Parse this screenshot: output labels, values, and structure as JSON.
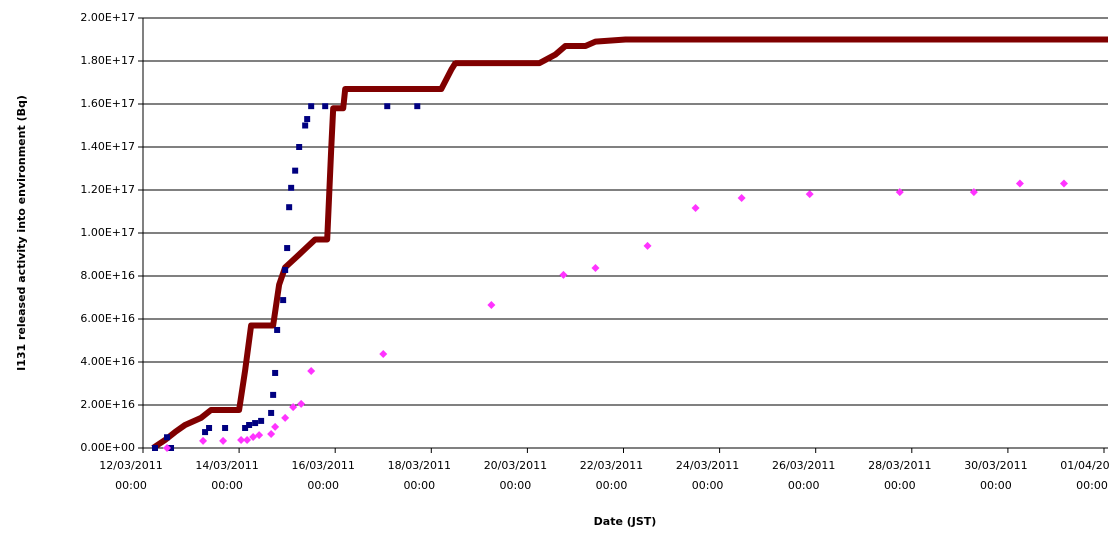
{
  "chart_data": {
    "type": "scatter",
    "x_label": "Date (JST)",
    "y_label": "I131 released activity into environment (Bq)",
    "xlim": [
      "2011-03-12 00:00",
      "2011-04-01 02:00"
    ],
    "xticks": [
      {
        "value": "2011-03-12 00:00",
        "label": "12/03/2011 00:00"
      },
      {
        "value": "2011-03-14 00:00",
        "label": "14/03/2011 00:00"
      },
      {
        "value": "2011-03-16 00:00",
        "label": "16/03/2011 00:00"
      },
      {
        "value": "2011-03-18 00:00",
        "label": "18/03/2011 00:00"
      },
      {
        "value": "2011-03-20 00:00",
        "label": "20/03/2011 00:00"
      },
      {
        "value": "2011-03-22 00:00",
        "label": "22/03/2011 00:00"
      },
      {
        "value": "2011-03-24 00:00",
        "label": "24/03/2011 00:00"
      },
      {
        "value": "2011-03-26 00:00",
        "label": "26/03/2011 00:00"
      },
      {
        "value": "2011-03-28 00:00",
        "label": "28/03/2011 00:00"
      },
      {
        "value": "2011-03-30 00:00",
        "label": "30/03/2011 00:00"
      },
      {
        "value": "2011-04-01 00:00",
        "label": "01/04/2011 00:00"
      }
    ],
    "ylim": [
      0,
      200000000000000000
    ],
    "yticks": [
      {
        "value": 0,
        "label": "0.00E+00"
      },
      {
        "value": 20000000000000000,
        "label": "2.00E+16"
      },
      {
        "value": 40000000000000000,
        "label": "4.00E+16"
      },
      {
        "value": 60000000000000000,
        "label": "6.00E+16"
      },
      {
        "value": 80000000000000000,
        "label": "8.00E+16"
      },
      {
        "value": 100000000000000000,
        "label": "1.00E+17"
      },
      {
        "value": 120000000000000000,
        "label": "1.20E+17"
      },
      {
        "value": 140000000000000000,
        "label": "1.40E+17"
      },
      {
        "value": 160000000000000000,
        "label": "1.60E+17"
      },
      {
        "value": 180000000000000000,
        "label": "1.80E+17"
      },
      {
        "value": 200000000000000000,
        "label": "2.00E+17"
      }
    ],
    "grid": true,
    "series": [
      {
        "marker": "line",
        "color": "#800000",
        "x": [
          "2011-03-12 05:00",
          "2011-03-12 11:00",
          "2011-03-12 16:00",
          "2011-03-12 21:00",
          "2011-03-13 05:00",
          "2011-03-13 10:00",
          "2011-03-14 00:00",
          "2011-03-14 03:00",
          "2011-03-14 06:00",
          "2011-03-14 17:00",
          "2011-03-14 20:00",
          "2011-03-14 23:00",
          "2011-03-15 06:00",
          "2011-03-15 14:00",
          "2011-03-15 20:00",
          "2011-03-15 22:00",
          "2011-03-15 23:00",
          "2011-03-16 04:00",
          "2011-03-16 05:00",
          "2011-03-18 05:00",
          "2011-03-18 10:00",
          "2011-03-18 12:00",
          "2011-03-20 06:00",
          "2011-03-20 14:00",
          "2011-03-20 19:00",
          "2011-03-21 05:00",
          "2011-03-21 10:00",
          "2011-03-22 01:00",
          "2011-04-01 02:00"
        ],
        "values": [
          0,
          3700000000000000,
          7400000000000000,
          10700000000000000,
          14000000000000000,
          17700000000000000,
          17700000000000000,
          36000000000000000,
          57000000000000000,
          57000000000000000,
          76000000000000000,
          84000000000000000,
          90000000000000000,
          97000000000000000,
          97000000000000000,
          139000000000000000,
          158000000000000000,
          158000000000000000,
          167000000000000000,
          167000000000000000,
          176000000000000000,
          179000000000000000,
          179000000000000000,
          183000000000000000,
          187000000000000000,
          187000000000000000,
          189000000000000000,
          190000000000000000,
          190000000000000000
        ]
      },
      {
        "marker": "square",
        "color": "#000080",
        "x": [
          "2011-03-12 06:00",
          "2011-03-12 12:00",
          "2011-03-12 14:00",
          "2011-03-13 07:00",
          "2011-03-13 09:00",
          "2011-03-13 17:00",
          "2011-03-14 03:00",
          "2011-03-14 05:00",
          "2011-03-14 08:00",
          "2011-03-14 11:00",
          "2011-03-14 16:00",
          "2011-03-14 17:00",
          "2011-03-14 18:00",
          "2011-03-14 19:00",
          "2011-03-14 22:00",
          "2011-03-14 23:00",
          "2011-03-15 00:00",
          "2011-03-15 01:00",
          "2011-03-15 02:00",
          "2011-03-15 04:00",
          "2011-03-15 06:00",
          "2011-03-15 09:00",
          "2011-03-15 10:00",
          "2011-03-15 12:00",
          "2011-03-15 19:00",
          "2011-03-17 02:00",
          "2011-03-17 17:00"
        ],
        "values": [
          0,
          5000000000000000,
          0,
          7400000000000000,
          9300000000000000,
          9300000000000000,
          9300000000000000,
          10700000000000000,
          11600000000000000,
          12600000000000000,
          16300000000000000,
          24700000000000000,
          34900000000000000,
          54900000000000000,
          68800000000000000,
          82800000000000000,
          93000000000000000,
          112000000000000000,
          121000000000000000,
          129000000000000000,
          140000000000000000,
          150000000000000000,
          153000000000000000,
          159000000000000000,
          159000000000000000,
          159000000000000000,
          159000000000000000
        ]
      },
      {
        "marker": "diamond",
        "color": "#ff33ff",
        "x": [
          "2011-03-12 12:00",
          "2011-03-13 06:00",
          "2011-03-13 16:00",
          "2011-03-14 01:00",
          "2011-03-14 04:00",
          "2011-03-14 07:00",
          "2011-03-14 10:00",
          "2011-03-14 16:00",
          "2011-03-14 18:00",
          "2011-03-14 23:00",
          "2011-03-15 03:00",
          "2011-03-15 07:00",
          "2011-03-15 12:00",
          "2011-03-17 00:00",
          "2011-03-19 06:00",
          "2011-03-20 18:00",
          "2011-03-21 10:00",
          "2011-03-22 12:00",
          "2011-03-23 12:00",
          "2011-03-24 11:00",
          "2011-03-25 21:00",
          "2011-03-27 18:00",
          "2011-03-29 07:00",
          "2011-03-30 06:00",
          "2011-03-31 04:00"
        ],
        "values": [
          0,
          3300000000000000,
          3300000000000000,
          3700000000000000,
          3700000000000000,
          5100000000000000,
          6000000000000000,
          6500000000000000,
          9800000000000000,
          14000000000000000,
          19000000000000000,
          20500000000000000,
          35800000000000000,
          43700000000000000,
          66500000000000000,
          80500000000000000,
          83700000000000000,
          94000000000000000,
          111600000000000000,
          116300000000000000,
          118100000000000000,
          119000000000000000,
          119000000000000000,
          123000000000000000,
          123000000000000000
        ]
      }
    ]
  }
}
